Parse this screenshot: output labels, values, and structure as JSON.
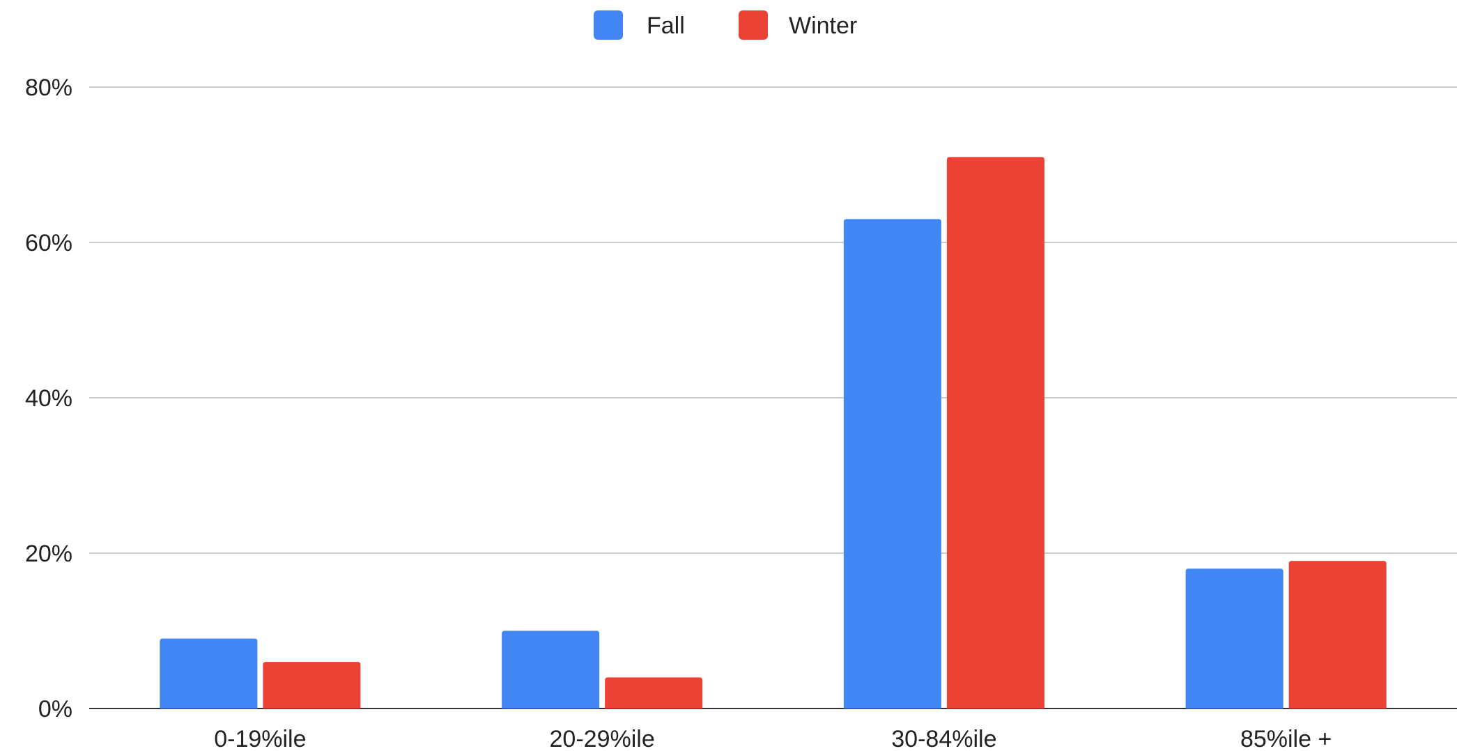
{
  "chart_data": {
    "type": "bar",
    "title": "",
    "xlabel": "",
    "ylabel": "",
    "categories": [
      "0-19%ile",
      "20-29%ile",
      "30-84%ile",
      "85%ile +"
    ],
    "series": [
      {
        "name": "Fall",
        "color": "#4285f4",
        "values": [
          9,
          10,
          63,
          18
        ]
      },
      {
        "name": "Winter",
        "color": "#ea4335",
        "values": [
          6,
          4,
          71,
          19
        ]
      }
    ],
    "ylim": [
      0,
      80
    ],
    "yticks": [
      0,
      20,
      40,
      60,
      80
    ],
    "ytick_labels": [
      "0%",
      "20%",
      "40%",
      "60%",
      "80%"
    ],
    "grid": true,
    "legend_position": "top-center"
  }
}
